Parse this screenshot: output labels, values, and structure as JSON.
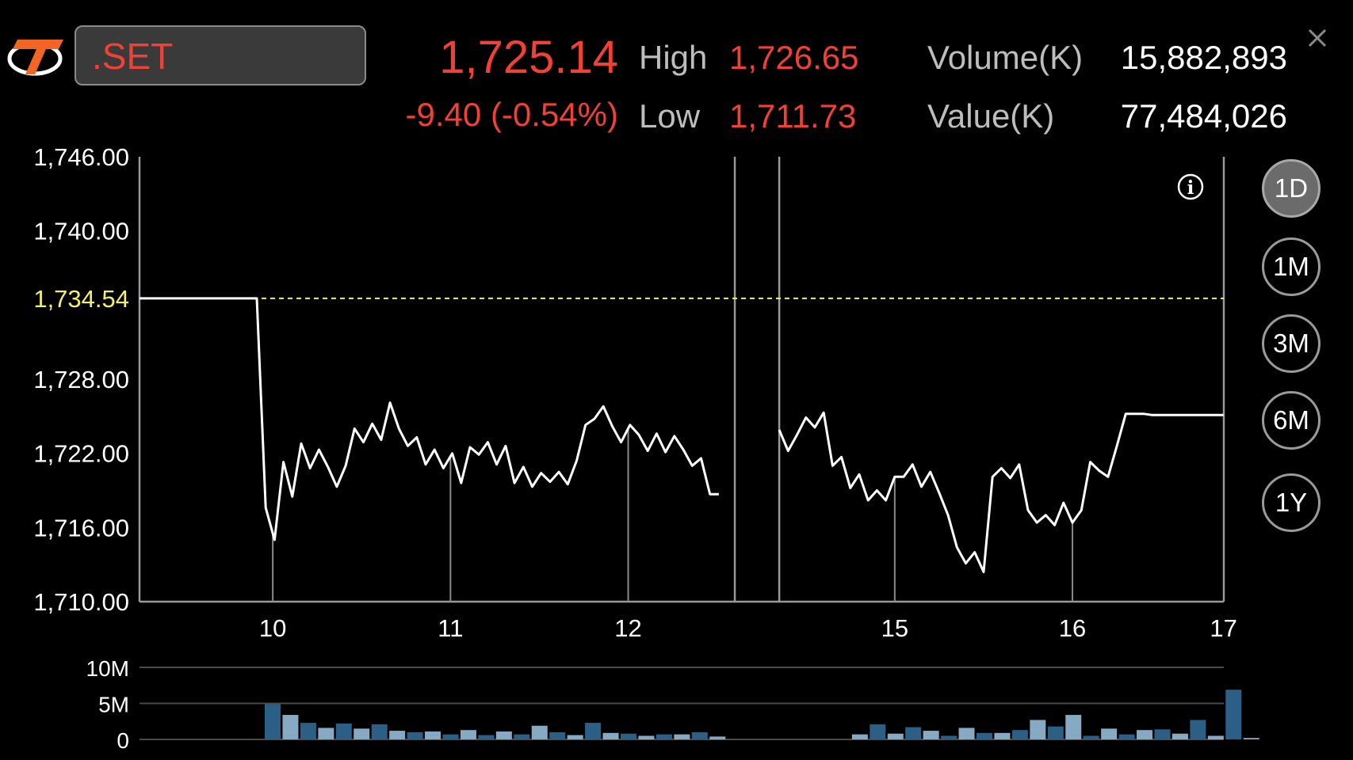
{
  "header": {
    "symbol": ".SET",
    "last": "1,725.14",
    "change": "-9.40 (-0.54%)",
    "high_label": "High",
    "high_value": "1,726.65",
    "low_label": "Low",
    "low_value": "1,711.73",
    "volume_label": "Volume(K)",
    "volume_value": "15,882,893",
    "value_label": "Value(K)",
    "value_value": "77,484,026"
  },
  "icons": {
    "logo": "brand-logo",
    "close": "close-icon",
    "info": "info-icon"
  },
  "ranges": [
    "1D",
    "1M",
    "3M",
    "6M",
    "1Y"
  ],
  "active_range": "1D",
  "colors": {
    "up_down_red": "#ef4136",
    "reference_yellow": "#f5f06a",
    "volume_dark": "#2b5f86",
    "volume_light": "#86a9c4",
    "line": "#ffffff"
  },
  "chart_data": [
    {
      "type": "line",
      "ylim": [
        1710,
        1746
      ],
      "y_ticks": [
        "1,746.00",
        "1,740.00",
        "1,728.00",
        "1,722.00",
        "1,716.00",
        "1,710.00"
      ],
      "reference_line": {
        "value": 1734.54,
        "label": "1,734.54"
      },
      "x_ticks": [
        "10",
        "11",
        "12",
        "15",
        "16",
        "17"
      ],
      "segments": [
        [
          [
            0,
            1734.54
          ],
          [
            1.32,
            1734.54
          ],
          [
            1.42,
            1717.6
          ],
          [
            1.52,
            1715
          ],
          [
            1.62,
            1721.3
          ],
          [
            1.72,
            1718.5
          ],
          [
            1.82,
            1722.8
          ],
          [
            1.92,
            1720.8
          ],
          [
            2.02,
            1722.3
          ],
          [
            2.12,
            1720.9
          ],
          [
            2.22,
            1719.3
          ],
          [
            2.32,
            1721
          ],
          [
            2.42,
            1724
          ],
          [
            2.52,
            1722.9
          ],
          [
            2.62,
            1724.4
          ],
          [
            2.72,
            1723.1
          ],
          [
            2.82,
            1726.1
          ],
          [
            2.92,
            1724
          ],
          [
            3.02,
            1722.6
          ],
          [
            3.12,
            1723.3
          ],
          [
            3.22,
            1721.1
          ],
          [
            3.32,
            1722.3
          ],
          [
            3.42,
            1720.8
          ],
          [
            3.52,
            1722
          ],
          [
            3.62,
            1719.6
          ],
          [
            3.72,
            1722.5
          ],
          [
            3.82,
            1721.9
          ],
          [
            3.92,
            1722.9
          ],
          [
            4.02,
            1721.1
          ],
          [
            4.12,
            1722.6
          ],
          [
            4.22,
            1719.6
          ],
          [
            4.32,
            1720.9
          ],
          [
            4.42,
            1719.3
          ],
          [
            4.52,
            1720.4
          ],
          [
            4.62,
            1719.7
          ],
          [
            4.72,
            1720.5
          ],
          [
            4.82,
            1719.5
          ],
          [
            4.92,
            1721.4
          ],
          [
            5.02,
            1724.3
          ],
          [
            5.12,
            1724.8
          ],
          [
            5.22,
            1725.8
          ],
          [
            5.32,
            1724.2
          ],
          [
            5.42,
            1722.9
          ],
          [
            5.52,
            1724.3
          ],
          [
            5.62,
            1723.5
          ],
          [
            5.72,
            1722.2
          ],
          [
            5.82,
            1723.6
          ],
          [
            5.92,
            1722.1
          ],
          [
            6.02,
            1723.4
          ],
          [
            6.12,
            1722.3
          ],
          [
            6.22,
            1721
          ],
          [
            6.32,
            1721.6
          ],
          [
            6.42,
            1718.7
          ],
          [
            6.52,
            1718.7
          ]
        ],
        [
          [
            7.2,
            1723.9
          ],
          [
            7.3,
            1722.2
          ],
          [
            7.4,
            1723.5
          ],
          [
            7.5,
            1724.9
          ],
          [
            7.6,
            1724.1
          ],
          [
            7.7,
            1725.3
          ],
          [
            7.8,
            1721
          ],
          [
            7.9,
            1721.7
          ],
          [
            8,
            1719.2
          ],
          [
            8.1,
            1720.3
          ],
          [
            8.2,
            1718.2
          ],
          [
            8.3,
            1719
          ],
          [
            8.4,
            1718.2
          ],
          [
            8.5,
            1720.1
          ],
          [
            8.6,
            1720.1
          ],
          [
            8.7,
            1721.1
          ],
          [
            8.8,
            1719.3
          ],
          [
            8.9,
            1720.5
          ],
          [
            9,
            1718.8
          ],
          [
            9.1,
            1717
          ],
          [
            9.2,
            1714.4
          ],
          [
            9.3,
            1713.1
          ],
          [
            9.4,
            1714
          ],
          [
            9.5,
            1712.4
          ],
          [
            9.6,
            1720.1
          ],
          [
            9.7,
            1720.8
          ],
          [
            9.8,
            1720
          ],
          [
            9.9,
            1721.1
          ],
          [
            10,
            1717.4
          ],
          [
            10.1,
            1716.4
          ],
          [
            10.2,
            1717
          ],
          [
            10.3,
            1716.2
          ],
          [
            10.4,
            1718
          ],
          [
            10.5,
            1716.4
          ],
          [
            10.6,
            1717.4
          ],
          [
            10.7,
            1721.3
          ],
          [
            10.8,
            1720.6
          ],
          [
            10.9,
            1720.1
          ],
          [
            11,
            1722.6
          ],
          [
            11.1,
            1725.2
          ],
          [
            11.2,
            1725.2
          ],
          [
            11.3,
            1725.2
          ],
          [
            11.4,
            1725.1
          ],
          [
            12.2,
            1725.1
          ]
        ]
      ]
    },
    {
      "type": "bar",
      "ylim": [
        0,
        10
      ],
      "y_ticks": [
        "10M",
        "5M",
        "0"
      ],
      "values": [
        4.9,
        3.4,
        2.3,
        1.6,
        2.2,
        1.5,
        2.1,
        1.2,
        1,
        1.1,
        0.7,
        1.3,
        0.6,
        1.1,
        0.7,
        1.9,
        1,
        0.6,
        2.3,
        0.9,
        0.8,
        0.5,
        0.7,
        0.7,
        1,
        0.4,
        null,
        null,
        null,
        null,
        null,
        null,
        null,
        0.7,
        2.1,
        0.8,
        1.7,
        1.2,
        0.5,
        1.6,
        0.9,
        0.9,
        1.3,
        2.7,
        1.8,
        3.4,
        0.5,
        1.5,
        0.7,
        1.3,
        1.4,
        0.8,
        2.7,
        0.5,
        6.9,
        0.2
      ]
    }
  ]
}
